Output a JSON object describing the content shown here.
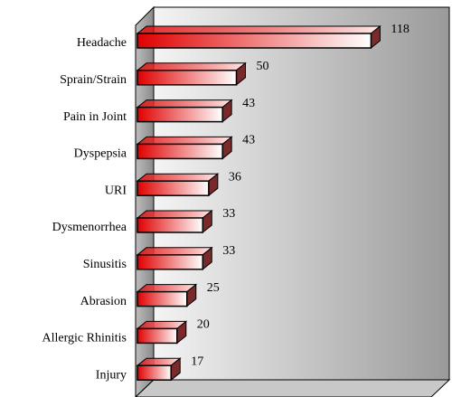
{
  "chart_data": {
    "type": "bar3d",
    "orientation": "horizontal",
    "categories": [
      "Headache",
      "Sprain/Strain",
      "Pain in Joint",
      "Dyspepsia",
      "URI",
      "Dysmenorrhea",
      "Sinusitis",
      "Abrasion",
      "Allergic Rhinitis",
      "Injury"
    ],
    "values": [
      118,
      50,
      43,
      43,
      36,
      33,
      33,
      25,
      20,
      17
    ],
    "color": "#e00000"
  }
}
